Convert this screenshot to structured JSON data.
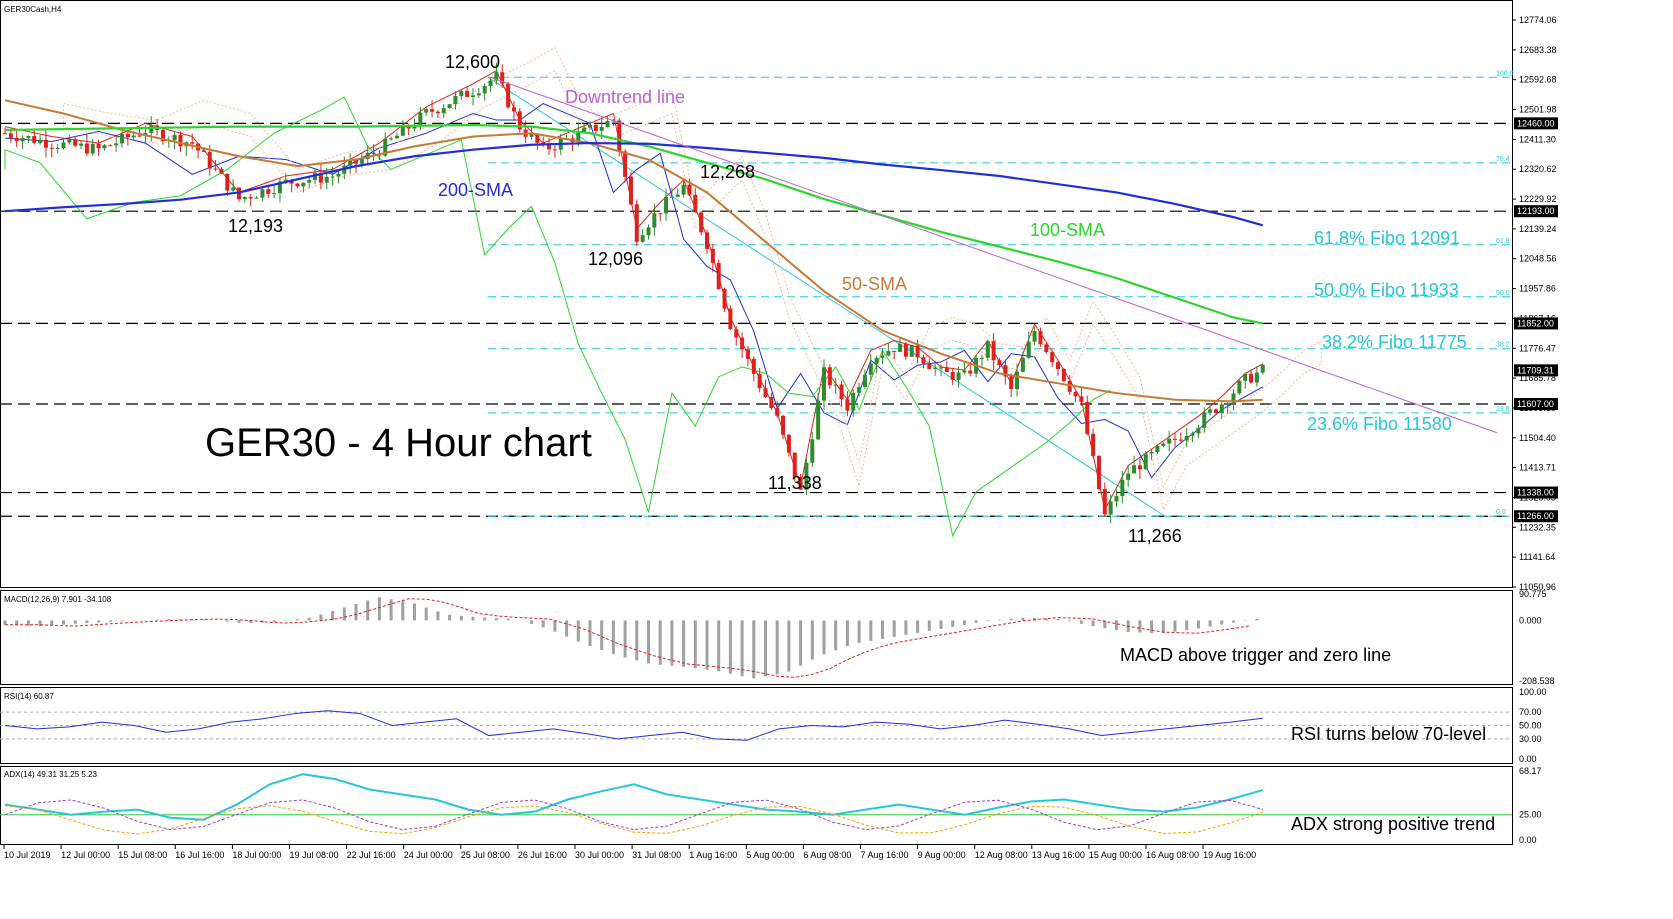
{
  "symbol_title": "GER30Cash,H4",
  "chart_title": "GER30 - 4 Hour chart",
  "annotations": {
    "downtrend": "Downtrend line",
    "sma200": "200-SMA",
    "sma100": "100-SMA",
    "sma50": "50-SMA",
    "high_12600": "12,600",
    "low_12193": "12,193",
    "high_12268": "12,268",
    "low_12096": "12,096",
    "low_11338": "11,338",
    "low_11266": "11,266",
    "fibo_618": "61.8% Fibo 12091",
    "fibo_500": "50.0% Fibo 11933",
    "fibo_382": "38.2% Fibo 11775",
    "fibo_236": "23.6% Fibo 11580",
    "macd_note": "MACD above trigger and zero line",
    "rsi_note": "RSI turns below 70-level",
    "adx_note": "ADX strong positive trend"
  },
  "fibo_small": {
    "f100": "100.0",
    "f764": "76.4",
    "f618": "61.8",
    "f50": "50.0",
    "f382": "38.2",
    "f236": "23.6",
    "f0": "0.0"
  },
  "price_axis": [
    "12774.06",
    "12683.38",
    "12592.68",
    "12501.98",
    "12411.30",
    "12320.62",
    "12229.92",
    "12139.24",
    "12048.56",
    "11957.86",
    "11867.16",
    "11776.47",
    "11685.78",
    "11595.10",
    "11504.40",
    "11413.71",
    "11323.03",
    "11232.35",
    "11141.64",
    "11050.96"
  ],
  "highlight_levels": {
    "l12460": "12460.00",
    "l12193": "12193.00",
    "l11852": "11852.00",
    "l11709": "11709.31",
    "l11607": "11607.00",
    "l11338": "11338.00",
    "l11266": "11266.00"
  },
  "macd": {
    "title": "MACD(12,26,9) 7.901 -34.108",
    "ticks": [
      "90.775",
      "0.000",
      "-208.538"
    ]
  },
  "rsi": {
    "title": "RSI(14) 60.87",
    "ticks": [
      "100.00",
      "70.00",
      "50.00",
      "30.00",
      "0.00"
    ]
  },
  "adx": {
    "title": "ADX(14) 49.31 31.25 5.23",
    "ticks": [
      "68.17",
      "25.00",
      "0.00"
    ]
  },
  "time_axis": [
    "10 Jul 2019",
    "12 Jul 00:00",
    "15 Jul 08:00",
    "16 Jul 16:00",
    "18 Jul 00:00",
    "19 Jul 08:00",
    "22 Jul 16:00",
    "24 Jul 00:00",
    "25 Jul 08:00",
    "26 Jul 16:00",
    "30 Jul 00:00",
    "31 Jul 08:00",
    "1 Aug 16:00",
    "5 Aug 00:00",
    "6 Aug 08:00",
    "7 Aug 16:00",
    "9 Aug 00:00",
    "12 Aug 08:00",
    "13 Aug 16:00",
    "15 Aug 00:00",
    "16 Aug 08:00",
    "19 Aug 16:00"
  ],
  "colors": {
    "bull": "#2e8b2e",
    "bear": "#e0201a",
    "sma200": "#1f2fd6",
    "sma100": "#2bd62b",
    "sma50": "#c77a36",
    "fibo": "#26c6da",
    "downtrend": "#c060d0",
    "macd_hist": "#a0a0a0",
    "macd_signal": "#e0201a",
    "rsi": "#1f2fd6",
    "adx": "#26c6da",
    "di_plus": "#9b3bd1",
    "di_minus": "#ff9900",
    "level25": "#2bd62b"
  },
  "chart_data": {
    "type": "line",
    "title": "GER30 - 4 Hour chart",
    "ylim": [
      11050.96,
      12774.06
    ],
    "levels": {
      "horizontal": [
        12460,
        12193,
        11852,
        11607,
        11338,
        11266
      ],
      "fibonacci": [
        {
          "label": "100.0",
          "value": 12600
        },
        {
          "label": "76.4",
          "value": 12340
        },
        {
          "label": "61.8",
          "value": 12091
        },
        {
          "label": "50.0",
          "value": 11933
        },
        {
          "label": "38.2",
          "value": 11775
        },
        {
          "label": "23.6",
          "value": 11580
        },
        {
          "label": "0.0",
          "value": 11266
        }
      ]
    },
    "series": [
      {
        "name": "200-SMA",
        "x": [
          0,
          10,
          20,
          30,
          40,
          50,
          60,
          70,
          80,
          90,
          100,
          110,
          120,
          130,
          140,
          150,
          160,
          170,
          180,
          190,
          200,
          210,
          215
        ],
        "values": [
          12193,
          12205,
          12215,
          12228,
          12250,
          12290,
          12330,
          12360,
          12380,
          12395,
          12400,
          12398,
          12385,
          12370,
          12355,
          12335,
          12318,
          12300,
          12275,
          12250,
          12215,
          12175,
          12150
        ]
      },
      {
        "name": "100-SMA",
        "x": [
          0,
          20,
          40,
          60,
          80,
          90,
          100,
          110,
          120,
          130,
          140,
          150,
          160,
          170,
          180,
          190,
          200,
          210,
          215
        ],
        "values": [
          12440,
          12445,
          12450,
          12450,
          12455,
          12450,
          12430,
          12390,
          12340,
          12290,
          12230,
          12180,
          12130,
          12085,
          12040,
          11990,
          11930,
          11870,
          11852
        ]
      },
      {
        "name": "50-SMA",
        "x": [
          0,
          10,
          20,
          30,
          40,
          50,
          60,
          70,
          80,
          90,
          100,
          110,
          120,
          130,
          140,
          150,
          160,
          170,
          180,
          190,
          200,
          210,
          215
        ],
        "values": [
          12530,
          12490,
          12440,
          12400,
          12360,
          12330,
          12350,
          12390,
          12420,
          12430,
          12400,
          12350,
          12250,
          12100,
          11950,
          11830,
          11760,
          11700,
          11670,
          11640,
          11620,
          11615,
          11620
        ]
      },
      {
        "name": "Downtrend line",
        "x": [
          83,
          255
        ],
        "values": [
          12600,
          11520
        ]
      },
      {
        "name": "Close",
        "x": [
          0,
          8,
          16,
          24,
          32,
          40,
          48,
          56,
          64,
          72,
          80,
          84,
          88,
          92,
          100,
          104,
          108,
          112,
          116,
          120,
          124,
          128,
          132,
          136,
          140,
          144,
          148,
          152,
          156,
          160,
          164,
          168,
          172,
          176,
          180,
          184,
          188,
          192,
          196,
          200,
          204,
          208,
          212,
          215
        ],
        "values": [
          12430,
          12400,
          12380,
          12440,
          12400,
          12230,
          12280,
          12300,
          12380,
          12490,
          12560,
          12600,
          12450,
          12380,
          12440,
          12470,
          12120,
          12200,
          12268,
          12096,
          11850,
          11700,
          11560,
          11338,
          11700,
          11600,
          11750,
          11780,
          11760,
          11700,
          11690,
          11780,
          11650,
          11830,
          11720,
          11600,
          11266,
          11400,
          11450,
          11500,
          11550,
          11610,
          11680,
          11709
        ]
      }
    ]
  }
}
